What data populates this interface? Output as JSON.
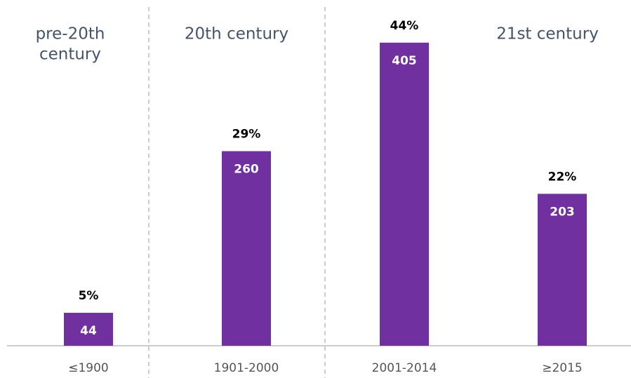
{
  "chart_data": {
    "type": "bar",
    "categories": [
      "≤1900",
      "1901-2000",
      "2001-2014",
      "≥2015"
    ],
    "values": [
      44,
      260,
      405,
      203
    ],
    "shares": [
      5,
      29,
      44,
      22
    ],
    "share_labels": [
      "5%",
      "29%",
      "44%",
      "22%"
    ],
    "color": "#7030a0",
    "ylim": [
      0,
      462
    ],
    "sections": [
      {
        "lines": [
          "pre-20th",
          "century"
        ]
      },
      {
        "lines": [
          "20th century"
        ]
      },
      {
        "lines": [
          "21st century"
        ]
      }
    ]
  }
}
